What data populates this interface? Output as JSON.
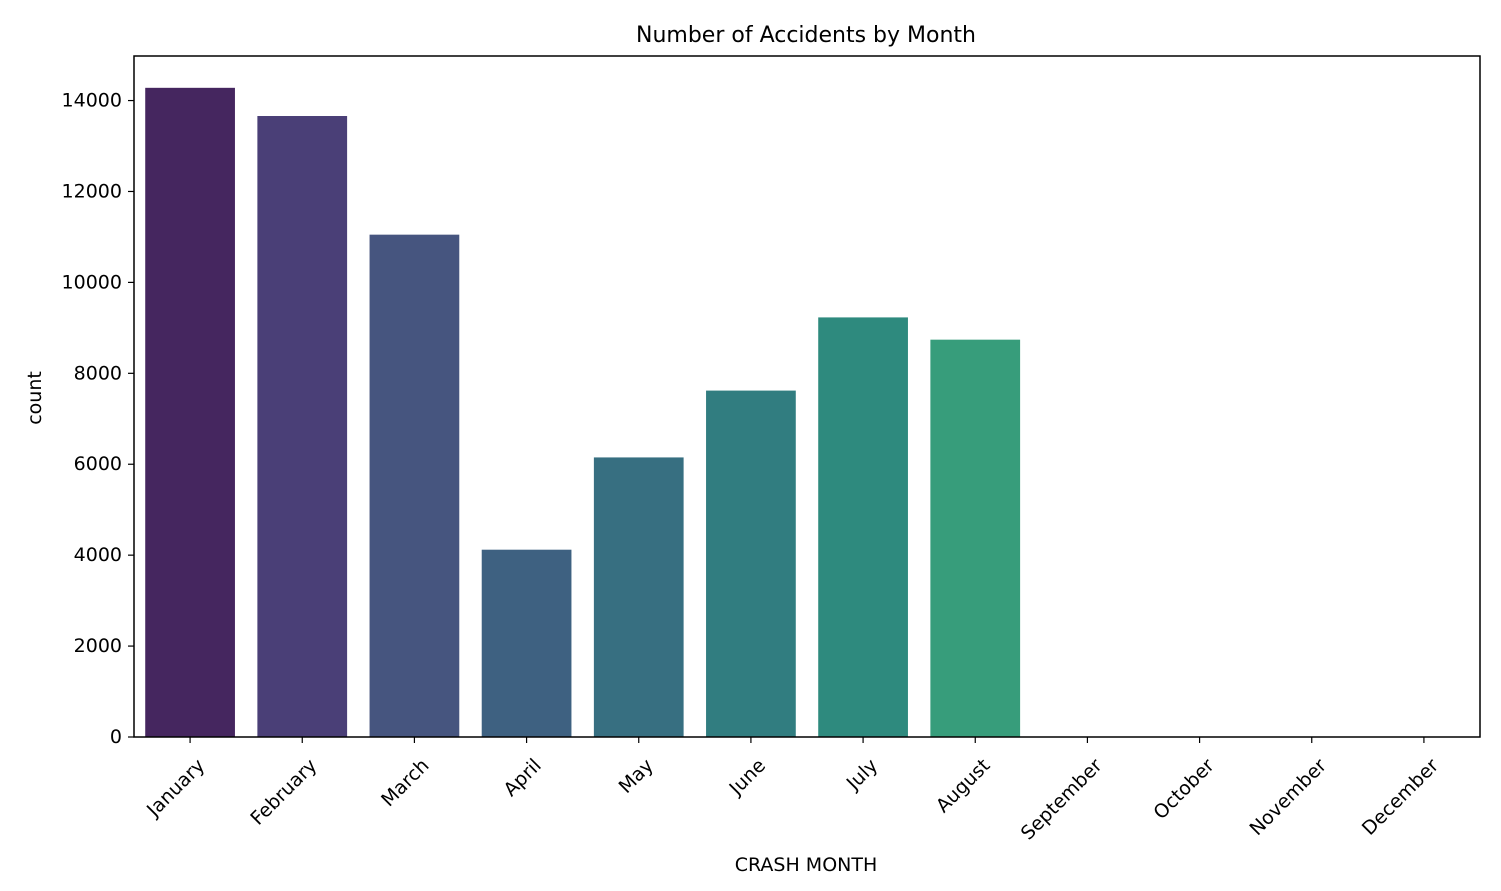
{
  "chart_data": {
    "type": "bar",
    "title": "Number of Accidents by Month",
    "xlabel": "CRASH MONTH",
    "ylabel": "count",
    "categories": [
      "January",
      "February",
      "March",
      "April",
      "May",
      "June",
      "July",
      "August",
      "September",
      "October",
      "November",
      "December"
    ],
    "values": [
      14280,
      13660,
      11050,
      4120,
      6150,
      7620,
      9230,
      8740,
      0,
      0,
      0,
      0
    ],
    "colors": [
      "#45265f",
      "#4a3f77",
      "#46557f",
      "#3e6181",
      "#376f81",
      "#317d80",
      "#2e8a7e",
      "#379d7b",
      "#43ab76",
      "#55b96d",
      "#72c660",
      "#95d352"
    ],
    "ylim": [
      0,
      14980
    ],
    "yticks": [
      0,
      2000,
      4000,
      6000,
      8000,
      10000,
      12000,
      14000
    ],
    "grid": false,
    "legend": "none"
  }
}
